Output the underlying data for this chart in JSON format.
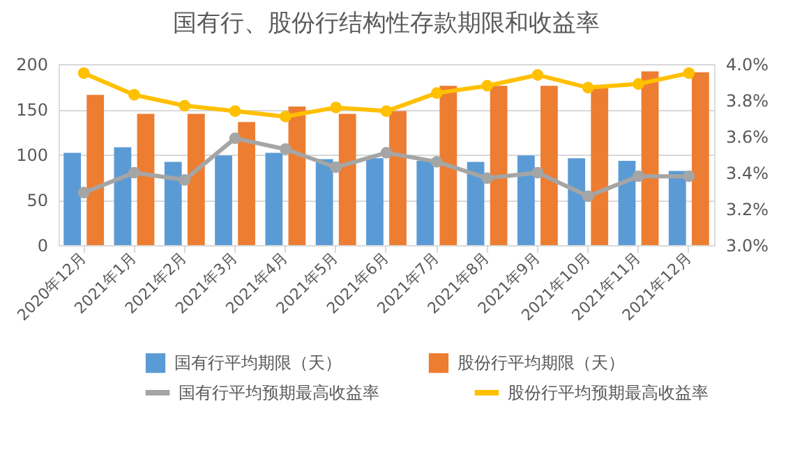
{
  "chart_data": {
    "type": "bar",
    "title": "国有行、股份行结构性存款期限和收益率",
    "categories": [
      "2020年12月",
      "2021年1月",
      "2021年2月",
      "2021年3月",
      "2021年4月",
      "2021年5月",
      "2021年6月",
      "2021年7月",
      "2021年8月",
      "2021年9月",
      "2021年10月",
      "2021年11月",
      "2021年12月"
    ],
    "series": [
      {
        "name": "国有行平均期限（天）",
        "color": "#5b9bd5",
        "values": [
          102,
          108,
          92,
          99,
          102,
          95,
          96,
          93,
          92,
          99,
          96,
          93,
          82
        ]
      },
      {
        "name": "股份行平均期限（天）",
        "color": "#ed7d31",
        "values": [
          166,
          145,
          145,
          136,
          153,
          145,
          148,
          176,
          176,
          176,
          174,
          192,
          191
        ]
      },
      {
        "name": "国有行平均预期最高收益率",
        "color": "#a5a5a5",
        "type": "line",
        "axis": "y2",
        "values": [
          3.29,
          3.4,
          3.36,
          3.59,
          3.53,
          3.43,
          3.51,
          3.46,
          3.37,
          3.4,
          3.27,
          3.38,
          3.38
        ]
      },
      {
        "name": "股份行平均预期最高收益率",
        "color": "#ffc000",
        "type": "line",
        "axis": "y2",
        "values": [
          3.95,
          3.83,
          3.77,
          3.74,
          3.71,
          3.76,
          3.74,
          3.84,
          3.88,
          3.94,
          3.87,
          3.89,
          3.95
        ]
      }
    ],
    "ylim": [
      0,
      200
    ],
    "yticks": [
      0,
      50,
      100,
      150,
      200
    ],
    "y2lim": [
      3.0,
      4.0
    ],
    "y2ticks": [
      {
        "value": 3.0,
        "label": "3.0%"
      },
      {
        "value": 3.2,
        "label": "3.2%"
      },
      {
        "value": 3.4,
        "label": "3.4%"
      },
      {
        "value": 3.6,
        "label": "3.6%"
      },
      {
        "value": 3.8,
        "label": "3.8%"
      },
      {
        "value": 4.0,
        "label": "4.0%"
      }
    ],
    "grid": "y",
    "legend": "bottom",
    "marker": "circle",
    "line_style": "solid"
  }
}
